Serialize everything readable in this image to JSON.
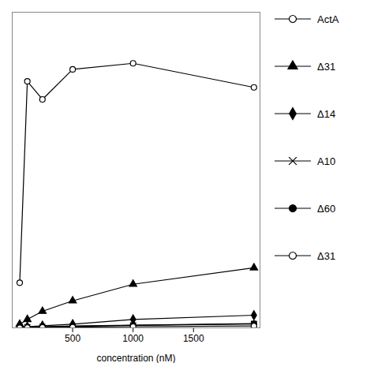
{
  "chart_data": {
    "type": "line",
    "xlabel": "concentration (nM)",
    "xlim": [
      0,
      2050
    ],
    "xticks": [
      500,
      1000,
      1500
    ],
    "ylim": [
      0.0,
      10.5
    ],
    "yticks": [],
    "tick_labels": "x",
    "legend": "right",
    "x": [
      62,
      125,
      250,
      500,
      1000,
      2000
    ],
    "series": [
      {
        "name": "ActA",
        "color": "black",
        "marker": "circle-open",
        "values": [
          1.5,
          8.2,
          7.6,
          8.6,
          8.8,
          8.0
        ]
      },
      {
        "name": "Δ31",
        "color": "black",
        "marker": "triangle",
        "values": [
          0.12,
          0.28,
          0.55,
          0.9,
          1.45,
          2.0
        ]
      },
      {
        "name": "Δ14",
        "color": "black",
        "marker": "diamond",
        "values": [
          0.02,
          0.04,
          0.07,
          0.12,
          0.28,
          0.42
        ]
      },
      {
        "name": "A10",
        "color": "black",
        "marker": "x",
        "values": [
          0.01,
          0.02,
          0.03,
          0.05,
          0.08,
          0.13
        ]
      },
      {
        "name": "Δ60",
        "color": "black",
        "marker": "circle",
        "values": [
          0.01,
          0.02,
          0.04,
          0.06,
          0.09,
          0.14
        ]
      },
      {
        "name": "Δ31",
        "color": "black",
        "marker": "circle-open",
        "values": [
          0.005,
          0.01,
          0.015,
          0.025,
          0.04,
          0.06
        ]
      }
    ]
  }
}
